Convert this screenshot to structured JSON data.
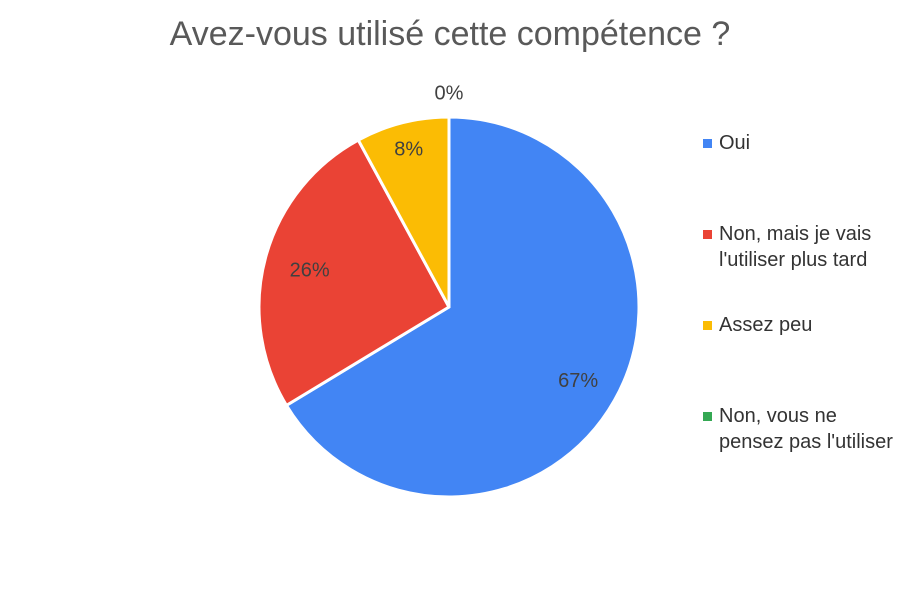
{
  "chart_data": {
    "type": "pie",
    "title": "Avez-vous utilisé cette compétence ?",
    "categories": [
      "Oui",
      "Non, mais je vais l'utiliser plus tard",
      "Assez peu",
      "Non, vous ne pensez pas l'utiliser"
    ],
    "values": [
      67,
      26,
      8,
      0
    ],
    "value_labels": [
      "67%",
      "26%",
      "8%",
      "0%"
    ],
    "colors": [
      "#4285f4",
      "#ea4335",
      "#fbbc04",
      "#34a853"
    ],
    "legend_position": "right"
  }
}
